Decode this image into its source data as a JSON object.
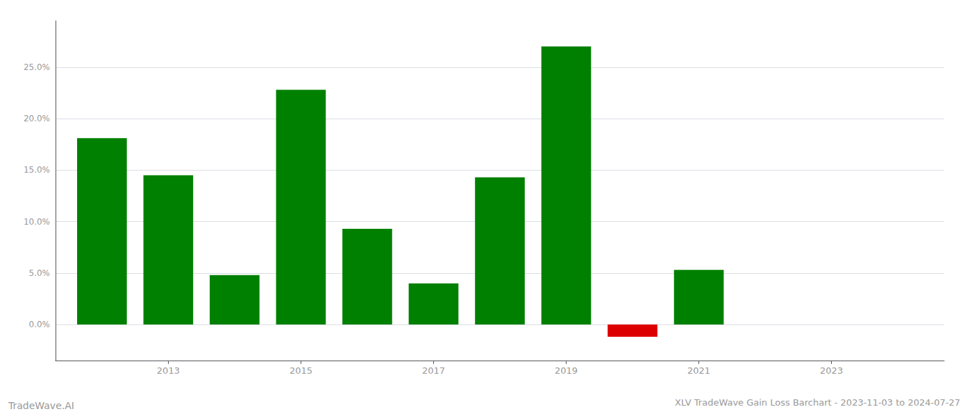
{
  "chart_data": {
    "type": "bar",
    "title": "XLV TradeWave Gain Loss Barchart - 2023-11-03 to 2024-07-27",
    "annotations": [
      "TradeWave.AI"
    ],
    "x": [
      2012,
      2013,
      2014,
      2015,
      2016,
      2017,
      2018,
      2019,
      2020,
      2021
    ],
    "values": [
      0.181,
      0.145,
      0.048,
      0.228,
      0.093,
      0.04,
      0.143,
      0.27,
      -0.012,
      0.053
    ],
    "colors": [
      "#008000",
      "#008000",
      "#008000",
      "#008000",
      "#008000",
      "#008000",
      "#008000",
      "#008000",
      "#dd0000",
      "#008000"
    ],
    "xlim": [
      2011.3,
      2024.7
    ],
    "xticks": [
      2013,
      2015,
      2017,
      2019,
      2021,
      2023
    ],
    "ylim": [
      -0.035,
      0.295
    ],
    "yticks": [
      {
        "value": 0.0,
        "label": "0.0%"
      },
      {
        "value": 0.05,
        "label": "5.0%"
      },
      {
        "value": 0.1,
        "label": "10.0%"
      },
      {
        "value": 0.15,
        "label": "15.0%"
      },
      {
        "value": 0.2,
        "label": "20.0%"
      },
      {
        "value": 0.25,
        "label": "25.0%"
      }
    ],
    "grid": true
  }
}
